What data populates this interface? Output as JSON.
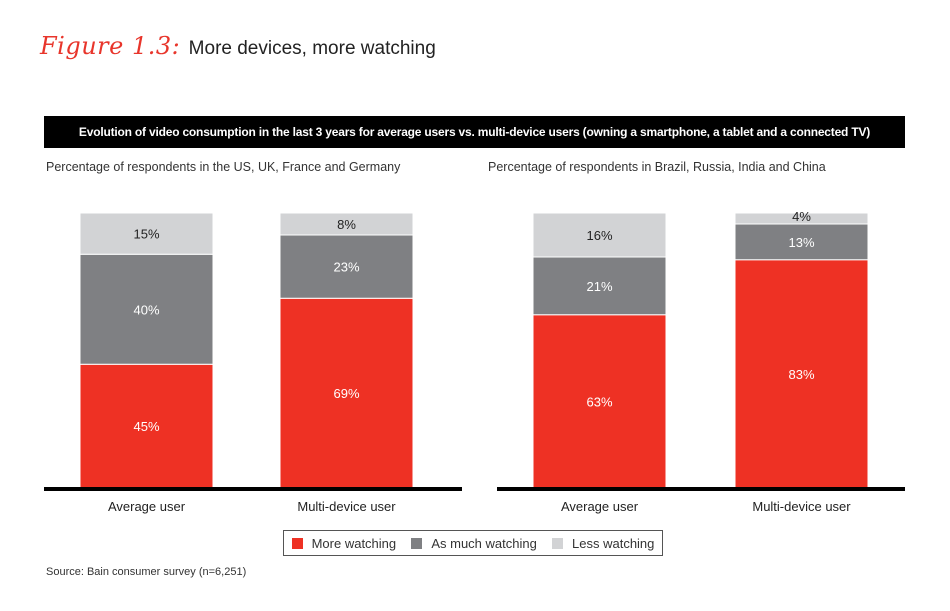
{
  "figure": {
    "label": "Figure 1.3:",
    "title": "More devices, more watching"
  },
  "banner": "Evolution of video consumption in the last 3 years for average users vs. multi-device users (owning a smartphone, a tablet and a connected TV)",
  "colors": {
    "more_watching": "#ee3124",
    "as_much_watching": "#7f8083",
    "less_watching": "#d2d3d5",
    "accent": "#e8352b",
    "banner_bg": "#000000"
  },
  "legend": [
    {
      "name": "More watching",
      "color": "#ee3124"
    },
    {
      "name": "As much watching",
      "color": "#7f8083"
    },
    {
      "name": "Less watching",
      "color": "#d2d3d5"
    }
  ],
  "chart_data": [
    {
      "type": "bar",
      "stacked": true,
      "title": "Percentage of respondents in the US, UK, France and Germany",
      "categories": [
        "Average user",
        "Multi-device user"
      ],
      "ylim": [
        0,
        100
      ],
      "series": [
        {
          "name": "More watching",
          "values": [
            45,
            69
          ],
          "labels": [
            "45%",
            "69%"
          ]
        },
        {
          "name": "As much watching",
          "values": [
            40,
            23
          ],
          "labels": [
            "40%",
            "23%"
          ]
        },
        {
          "name": "Less watching",
          "values": [
            15,
            8
          ],
          "labels": [
            "15%",
            "8%"
          ]
        }
      ]
    },
    {
      "type": "bar",
      "stacked": true,
      "title": "Percentage of respondents in Brazil, Russia, India and China",
      "categories": [
        "Average user",
        "Multi-device user"
      ],
      "ylim": [
        0,
        100
      ],
      "series": [
        {
          "name": "More watching",
          "values": [
            63,
            83
          ],
          "labels": [
            "63%",
            "83%"
          ]
        },
        {
          "name": "As much watching",
          "values": [
            21,
            13
          ],
          "labels": [
            "21%",
            "13%"
          ]
        },
        {
          "name": "Less watching",
          "values": [
            16,
            4
          ],
          "labels": [
            "16%",
            "4%"
          ]
        }
      ]
    }
  ],
  "source": "Source: Bain consumer survey (n=6,251)"
}
